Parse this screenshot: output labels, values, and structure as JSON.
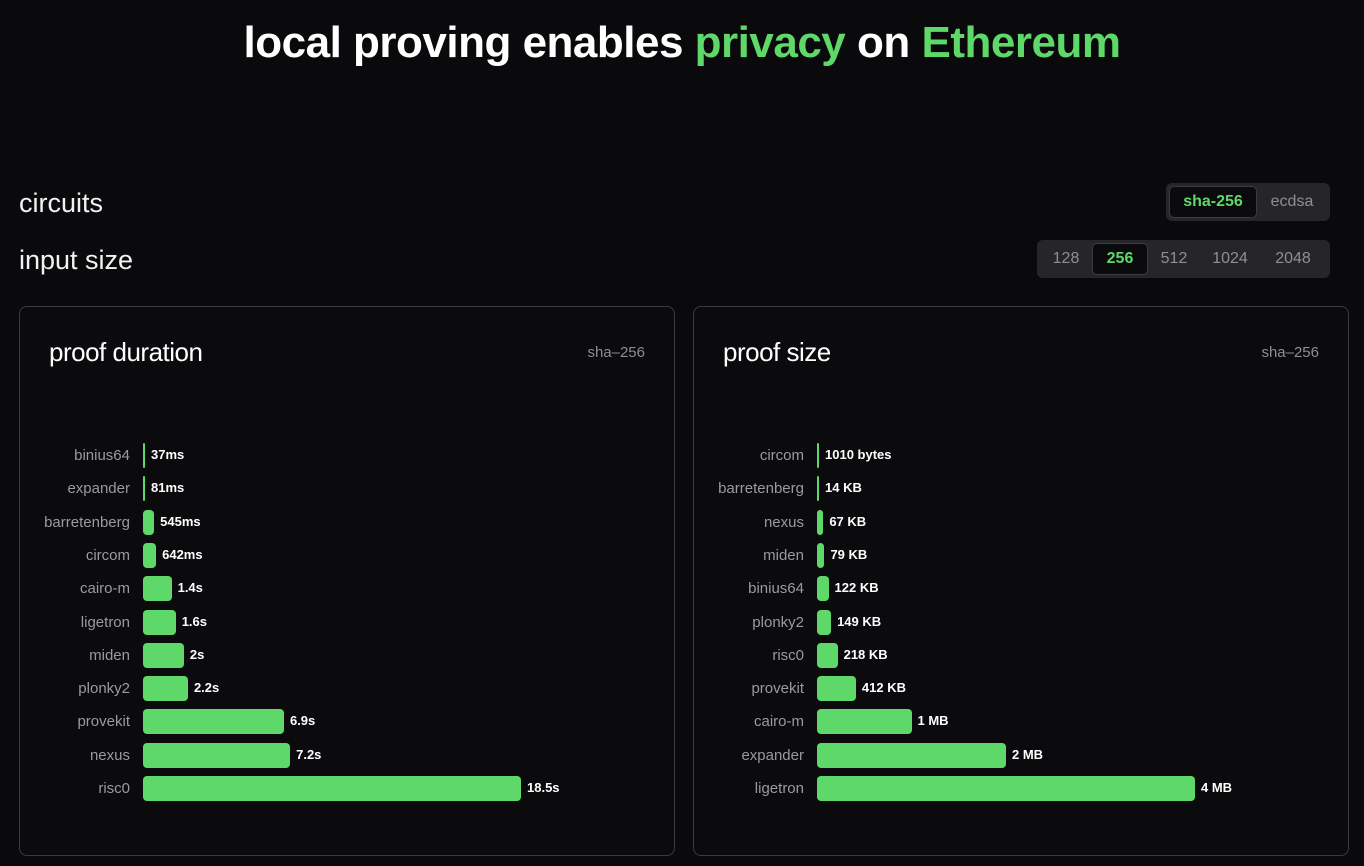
{
  "title": {
    "part1": "local proving enables",
    "part2": "privacy",
    "part3": "on",
    "part4": "Ethereum"
  },
  "colors": {
    "accent": "#5fd86a",
    "background": "#0a0a0c",
    "panel_border": "#3a3a40"
  },
  "controls": {
    "circuits": {
      "label": "circuits",
      "options": [
        "sha-256",
        "ecdsa"
      ],
      "selected": "sha-256"
    },
    "input_size": {
      "label": "input size",
      "options": [
        "128",
        "256",
        "512",
        "1024",
        "2048"
      ],
      "selected": "256"
    }
  },
  "chart_data": [
    {
      "type": "bar",
      "orientation": "horizontal",
      "title": "proof duration",
      "tag": "sha–256",
      "unit": "seconds",
      "categories": [
        "binius64",
        "expander",
        "barretenberg",
        "circom",
        "cairo-m",
        "ligetron",
        "miden",
        "plonky2",
        "provekit",
        "nexus",
        "risc0"
      ],
      "values": [
        0.037,
        0.081,
        0.545,
        0.642,
        1.4,
        1.6,
        2,
        2.2,
        6.9,
        7.2,
        18.5
      ],
      "value_labels": [
        "37ms",
        "81ms",
        "545ms",
        "642ms",
        "1.4s",
        "1.6s",
        "2s",
        "2.2s",
        "6.9s",
        "7.2s",
        "18.5s"
      ]
    },
    {
      "type": "bar",
      "orientation": "horizontal",
      "title": "proof size",
      "tag": "sha–256",
      "unit": "KB",
      "categories": [
        "circom",
        "barretenberg",
        "nexus",
        "miden",
        "binius64",
        "plonky2",
        "risc0",
        "provekit",
        "cairo-m",
        "expander",
        "ligetron"
      ],
      "values": [
        1.01,
        14,
        67,
        79,
        122,
        149,
        218,
        412,
        1000,
        2000,
        4000
      ],
      "value_labels": [
        "1010 bytes",
        "14 KB",
        "67 KB",
        "79 KB",
        "122 KB",
        "149 KB",
        "218 KB",
        "412 KB",
        "1 MB",
        "2 MB",
        "4 MB"
      ]
    }
  ]
}
